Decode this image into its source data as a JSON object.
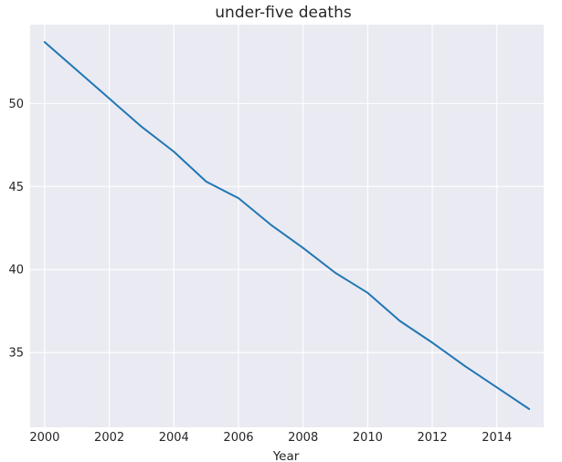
{
  "chart_data": {
    "type": "line",
    "title": "under-five deaths",
    "xlabel": "Year",
    "ylabel": "",
    "x": [
      2000,
      2001,
      2002,
      2003,
      2004,
      2005,
      2006,
      2007,
      2008,
      2009,
      2010,
      2011,
      2012,
      2013,
      2014,
      2015
    ],
    "series": [
      {
        "values": [
          53.7,
          52.0,
          50.3,
          48.6,
          47.1,
          45.3,
          44.3,
          42.7,
          41.3,
          39.8,
          38.6,
          36.9,
          35.6,
          34.2,
          32.9,
          31.6
        ],
        "color": "#1f77b4"
      }
    ],
    "xlim": [
      1999.55,
      2015.45
    ],
    "ylim": [
      30.5,
      54.75
    ],
    "xticks": [
      2000,
      2002,
      2004,
      2006,
      2008,
      2010,
      2012,
      2014
    ],
    "yticks": [
      35,
      40,
      45,
      50
    ],
    "grid": true,
    "style": {
      "background": "#eaeaf2",
      "grid_color": "#ffffff"
    }
  }
}
